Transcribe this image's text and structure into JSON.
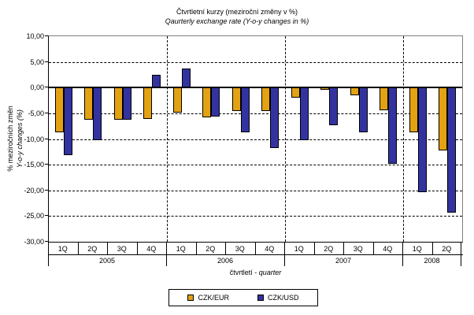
{
  "title": {
    "line1": "Čtvrtletní kurzy (meziroční změny v %)",
    "line2": "Qaurterly exchange rate  (Y-o-y changes in %)"
  },
  "y_axis": {
    "title_line1": "% meziročních změn",
    "title_line2": "Y-o-y changes (%)",
    "ticks": [
      {
        "v": 10,
        "label": "10,00"
      },
      {
        "v": 5,
        "label": "5,00"
      },
      {
        "v": 0,
        "label": "0,00"
      },
      {
        "v": -5,
        "label": "-5,00"
      },
      {
        "v": -10,
        "label": "-10,00"
      },
      {
        "v": -15,
        "label": "-15,00"
      },
      {
        "v": -20,
        "label": "-20,00"
      },
      {
        "v": -25,
        "label": "-25,00"
      },
      {
        "v": -30,
        "label": "-30,00"
      }
    ]
  },
  "x_axis": {
    "title_cz": "čtvrtletí - ",
    "title_en": "quarter",
    "years": [
      {
        "label": "2005",
        "quarters": [
          "1Q",
          "2Q",
          "3Q",
          "4Q"
        ]
      },
      {
        "label": "2006",
        "quarters": [
          "1Q",
          "2Q",
          "3Q",
          "4Q"
        ]
      },
      {
        "label": "2007",
        "quarters": [
          "1Q",
          "2Q",
          "3Q",
          "4Q"
        ]
      },
      {
        "label": "2008",
        "quarters": [
          "1Q",
          "2Q"
        ]
      }
    ]
  },
  "chart_data": {
    "type": "bar",
    "categories": [
      "1Q 2005",
      "2Q 2005",
      "3Q 2005",
      "4Q 2005",
      "1Q 2006",
      "2Q 2006",
      "3Q 2006",
      "4Q 2006",
      "1Q 2007",
      "2Q 2007",
      "3Q 2007",
      "4Q 2007",
      "1Q 2008",
      "2Q 2008"
    ],
    "series": [
      {
        "name": "CZK/EUR",
        "color": "#E3A213",
        "values": [
          -8.7,
          -6.2,
          -6.3,
          -6.1,
          -4.9,
          -5.8,
          -4.6,
          -4.5,
          -2.0,
          -0.4,
          -1.5,
          -4.4,
          -8.7,
          -12.2
        ]
      },
      {
        "name": "CZK/USD",
        "color": "#3333A0",
        "values": [
          -13.1,
          -10.2,
          -6.2,
          2.5,
          3.7,
          -5.7,
          -8.7,
          -11.7,
          -10.2,
          -7.3,
          -8.7,
          -14.8,
          -20.4,
          -24.3
        ]
      }
    ],
    "title": "Čtvrtletní kurzy (meziroční změny v %)",
    "subtitle": "Qaurterly exchange rate  (Y-o-y changes in %)",
    "xlabel": "čtvrtletí - quarter",
    "ylabel": "% meziročních změn / Y-o-y changes (%)",
    "ylim": [
      -30,
      10
    ],
    "ytick_step": 5,
    "grid": true,
    "gridline_style": "dashed",
    "legend_position": "bottom"
  }
}
